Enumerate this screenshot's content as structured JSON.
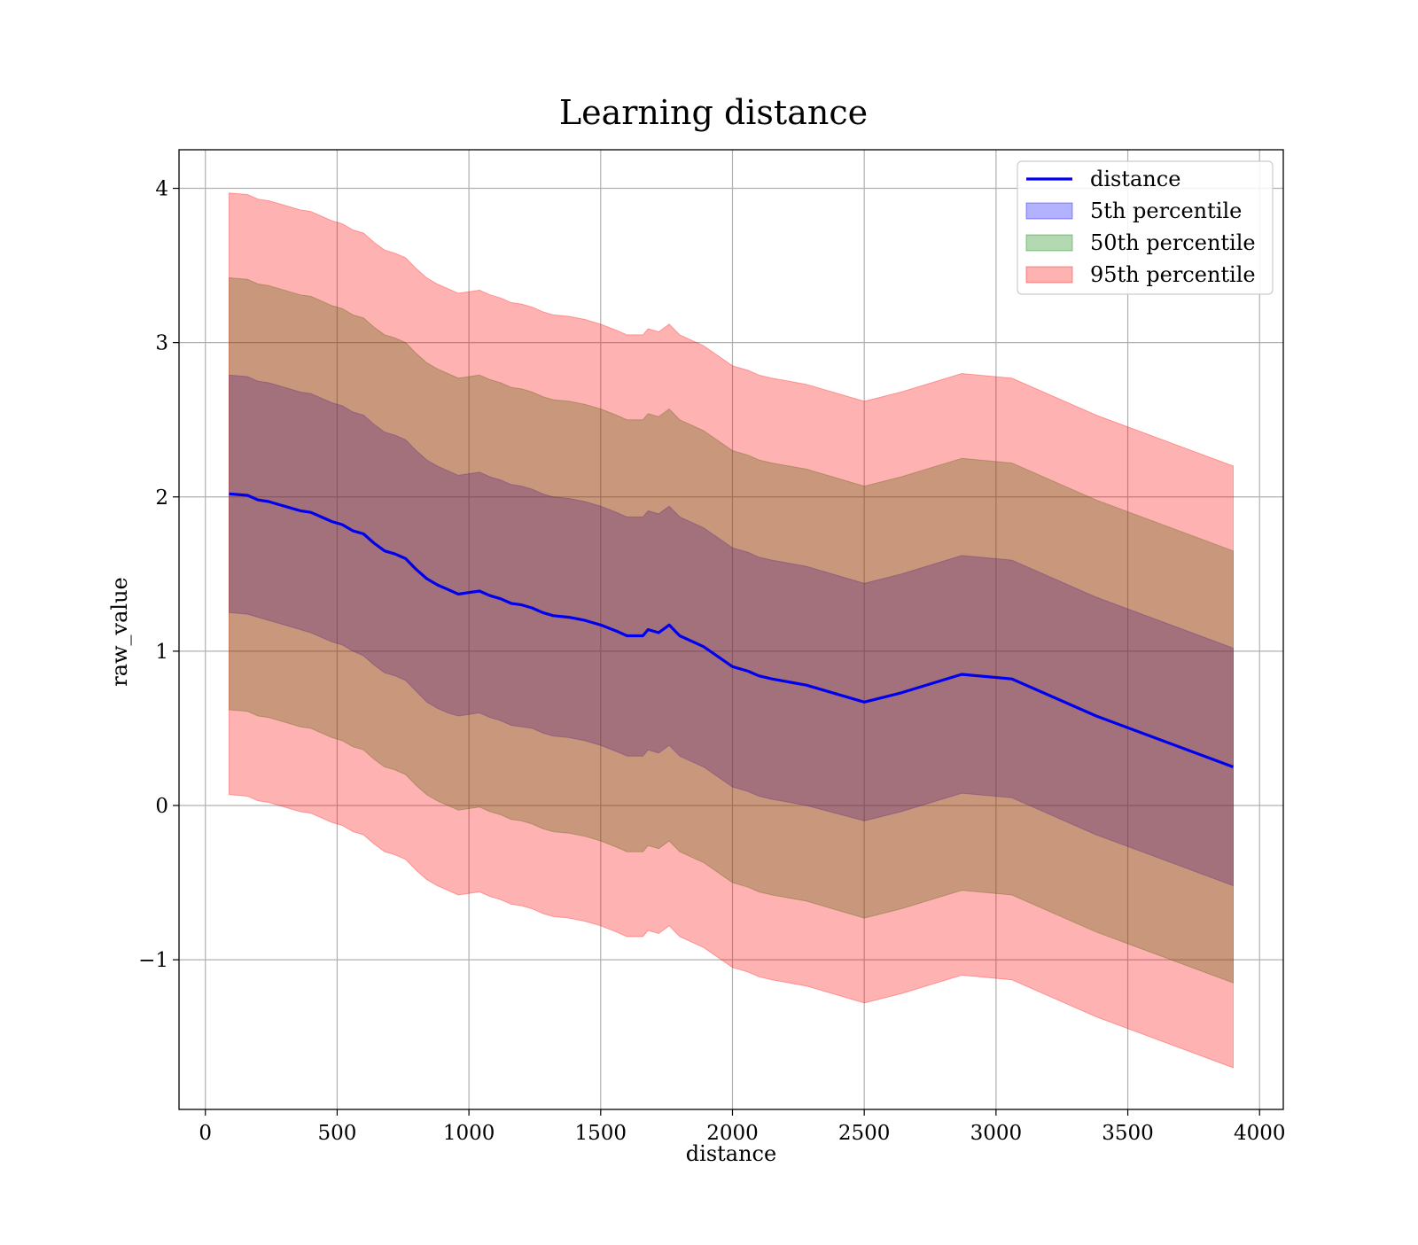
{
  "chart_data": {
    "type": "area",
    "title": "Learning distance",
    "xlabel": "distance",
    "ylabel": "raw_value",
    "xlim": [
      -100,
      4090
    ],
    "ylim": [
      -1.97,
      4.25
    ],
    "xticks": [
      0,
      500,
      1000,
      1500,
      2000,
      2500,
      3000,
      3500,
      4000
    ],
    "yticks": [
      -1,
      0,
      1,
      2,
      3,
      4
    ],
    "xtick_labels": [
      "0",
      "500",
      "1000",
      "1500",
      "2000",
      "2500",
      "3000",
      "3500",
      "4000"
    ],
    "ytick_labels": [
      "−1",
      "0",
      "1",
      "2",
      "3",
      "4"
    ],
    "grid": true,
    "legend_position": "top-right",
    "x": [
      90,
      160,
      200,
      240,
      280,
      320,
      360,
      400,
      440,
      480,
      520,
      560,
      600,
      640,
      680,
      720,
      760,
      800,
      840,
      880,
      920,
      960,
      1000,
      1040,
      1080,
      1120,
      1160,
      1200,
      1240,
      1280,
      1320,
      1380,
      1440,
      1500,
      1560,
      1600,
      1660,
      1680,
      1720,
      1760,
      1800,
      1890,
      2000,
      2060,
      2100,
      2150,
      2280,
      2500,
      2640,
      2870,
      3060,
      3380,
      3900
    ],
    "series": [
      {
        "name": "distance",
        "kind": "line",
        "color": "#0000ee",
        "values": [
          2.02,
          2.01,
          1.98,
          1.97,
          1.95,
          1.93,
          1.91,
          1.9,
          1.87,
          1.84,
          1.82,
          1.78,
          1.76,
          1.7,
          1.65,
          1.63,
          1.6,
          1.53,
          1.47,
          1.43,
          1.4,
          1.37,
          1.38,
          1.39,
          1.36,
          1.34,
          1.31,
          1.3,
          1.28,
          1.25,
          1.23,
          1.22,
          1.2,
          1.17,
          1.13,
          1.1,
          1.1,
          1.14,
          1.12,
          1.17,
          1.1,
          1.03,
          0.9,
          0.87,
          0.84,
          0.82,
          0.78,
          0.67,
          0.73,
          0.85,
          0.82,
          0.58,
          0.25
        ]
      },
      {
        "name": "5th percentile",
        "kind": "band",
        "color": "#0000ff",
        "opacity": 0.3,
        "lower": [
          1.25,
          1.24,
          1.22,
          1.2,
          1.18,
          1.16,
          1.14,
          1.12,
          1.09,
          1.06,
          1.04,
          1.0,
          0.97,
          0.91,
          0.86,
          0.84,
          0.81,
          0.74,
          0.67,
          0.63,
          0.6,
          0.58,
          0.59,
          0.6,
          0.57,
          0.55,
          0.52,
          0.51,
          0.5,
          0.47,
          0.45,
          0.44,
          0.42,
          0.39,
          0.35,
          0.32,
          0.32,
          0.36,
          0.34,
          0.39,
          0.32,
          0.25,
          0.12,
          0.09,
          0.06,
          0.04,
          0.0,
          -0.1,
          -0.04,
          0.08,
          0.05,
          -0.19,
          -0.52
        ],
        "upper": [
          2.79,
          2.78,
          2.75,
          2.74,
          2.72,
          2.7,
          2.68,
          2.67,
          2.64,
          2.61,
          2.59,
          2.55,
          2.53,
          2.47,
          2.42,
          2.4,
          2.37,
          2.3,
          2.24,
          2.2,
          2.17,
          2.14,
          2.15,
          2.16,
          2.13,
          2.11,
          2.08,
          2.07,
          2.05,
          2.02,
          2.0,
          1.99,
          1.97,
          1.94,
          1.9,
          1.87,
          1.87,
          1.91,
          1.89,
          1.94,
          1.87,
          1.8,
          1.67,
          1.64,
          1.61,
          1.59,
          1.55,
          1.44,
          1.5,
          1.62,
          1.59,
          1.35,
          1.02
        ]
      },
      {
        "name": "50th percentile",
        "kind": "band",
        "color": "#008000",
        "opacity": 0.3,
        "lower": [
          0.62,
          0.61,
          0.58,
          0.57,
          0.55,
          0.53,
          0.51,
          0.5,
          0.47,
          0.44,
          0.42,
          0.38,
          0.36,
          0.3,
          0.25,
          0.23,
          0.2,
          0.13,
          0.07,
          0.03,
          0.0,
          -0.03,
          -0.02,
          -0.01,
          -0.04,
          -0.06,
          -0.09,
          -0.1,
          -0.12,
          -0.15,
          -0.17,
          -0.18,
          -0.2,
          -0.23,
          -0.27,
          -0.3,
          -0.3,
          -0.26,
          -0.28,
          -0.23,
          -0.3,
          -0.37,
          -0.5,
          -0.53,
          -0.56,
          -0.58,
          -0.62,
          -0.73,
          -0.67,
          -0.55,
          -0.58,
          -0.82,
          -1.15
        ],
        "upper": [
          3.42,
          3.41,
          3.38,
          3.37,
          3.35,
          3.33,
          3.31,
          3.3,
          3.27,
          3.24,
          3.22,
          3.18,
          3.16,
          3.1,
          3.05,
          3.03,
          3.0,
          2.93,
          2.87,
          2.83,
          2.8,
          2.77,
          2.78,
          2.79,
          2.76,
          2.74,
          2.71,
          2.7,
          2.68,
          2.65,
          2.63,
          2.62,
          2.6,
          2.57,
          2.53,
          2.5,
          2.5,
          2.54,
          2.52,
          2.57,
          2.5,
          2.43,
          2.3,
          2.27,
          2.24,
          2.22,
          2.18,
          2.07,
          2.13,
          2.25,
          2.22,
          1.98,
          1.65
        ]
      },
      {
        "name": "95th percentile",
        "kind": "band",
        "color": "#ff0000",
        "opacity": 0.3,
        "lower": [
          0.07,
          0.06,
          0.03,
          0.02,
          0.0,
          -0.02,
          -0.04,
          -0.05,
          -0.08,
          -0.11,
          -0.13,
          -0.17,
          -0.19,
          -0.25,
          -0.3,
          -0.32,
          -0.35,
          -0.42,
          -0.48,
          -0.52,
          -0.55,
          -0.58,
          -0.57,
          -0.56,
          -0.59,
          -0.61,
          -0.64,
          -0.65,
          -0.67,
          -0.7,
          -0.72,
          -0.73,
          -0.75,
          -0.78,
          -0.82,
          -0.85,
          -0.85,
          -0.81,
          -0.83,
          -0.78,
          -0.85,
          -0.92,
          -1.05,
          -1.08,
          -1.11,
          -1.13,
          -1.17,
          -1.28,
          -1.22,
          -1.1,
          -1.13,
          -1.37,
          -1.7
        ],
        "upper": [
          3.97,
          3.96,
          3.93,
          3.92,
          3.9,
          3.88,
          3.86,
          3.85,
          3.82,
          3.79,
          3.77,
          3.73,
          3.71,
          3.65,
          3.6,
          3.58,
          3.55,
          3.48,
          3.42,
          3.38,
          3.35,
          3.32,
          3.33,
          3.34,
          3.31,
          3.29,
          3.26,
          3.25,
          3.23,
          3.2,
          3.18,
          3.17,
          3.15,
          3.12,
          3.08,
          3.05,
          3.05,
          3.09,
          3.07,
          3.12,
          3.05,
          2.98,
          2.85,
          2.82,
          2.79,
          2.77,
          2.73,
          2.62,
          2.68,
          2.8,
          2.77,
          2.53,
          2.2
        ]
      }
    ]
  }
}
